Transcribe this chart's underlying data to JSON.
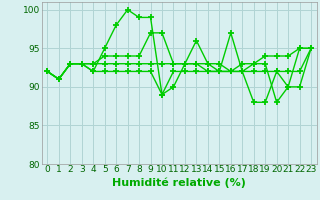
{
  "series": [
    [
      92,
      91,
      93,
      93,
      92,
      95,
      98,
      100,
      99,
      99,
      89,
      90,
      93,
      96,
      93,
      92,
      97,
      92,
      93,
      93,
      88,
      90,
      95,
      95
    ],
    [
      92,
      91,
      93,
      93,
      93,
      94,
      94,
      94,
      94,
      97,
      97,
      93,
      93,
      93,
      93,
      93,
      92,
      93,
      93,
      94,
      94,
      94,
      95,
      95
    ],
    [
      92,
      91,
      93,
      93,
      93,
      93,
      93,
      93,
      93,
      93,
      93,
      93,
      93,
      93,
      92,
      92,
      92,
      92,
      92,
      92,
      92,
      92,
      92,
      95
    ],
    [
      92,
      91,
      93,
      93,
      92,
      92,
      92,
      92,
      92,
      92,
      89,
      92,
      92,
      92,
      92,
      92,
      92,
      92,
      88,
      88,
      92,
      90,
      90,
      95
    ]
  ],
  "line_color": "#00cc00",
  "marker": "+",
  "markersize": 4,
  "markeredgewidth": 1.3,
  "linewidth": 1.0,
  "xlabel": "Humidité relative (%)",
  "xlabel_fontsize": 8,
  "xlabel_color": "#00aa00",
  "xlabel_weight": "bold",
  "ylim": [
    80,
    101
  ],
  "yticks": [
    80,
    85,
    90,
    95,
    100
  ],
  "xlim": [
    -0.5,
    23.5
  ],
  "xticks": [
    0,
    1,
    2,
    3,
    4,
    5,
    6,
    7,
    8,
    9,
    10,
    11,
    12,
    13,
    14,
    15,
    16,
    17,
    18,
    19,
    20,
    21,
    22,
    23
  ],
  "bg_color": "#d8f0f0",
  "grid_color": "#b0d4d4",
  "tick_color": "#006600",
  "tick_fontsize": 6.5,
  "fig_width": 3.2,
  "fig_height": 2.0,
  "dpi": 100
}
